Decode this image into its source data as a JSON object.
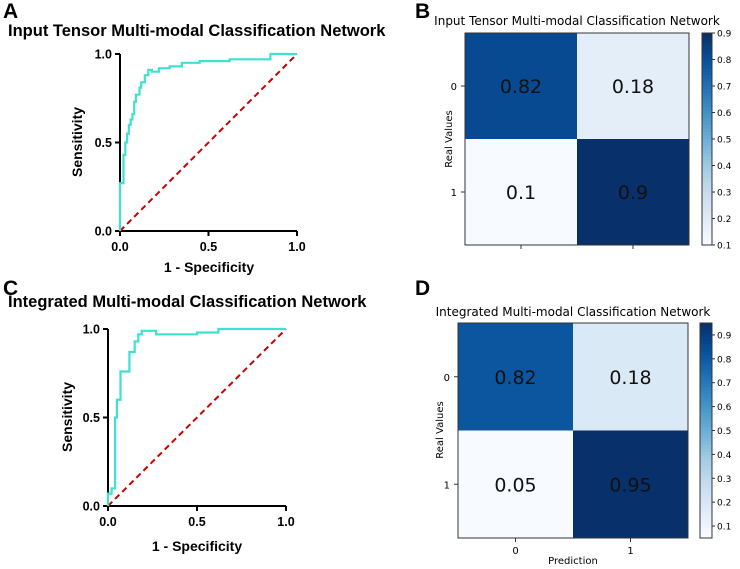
{
  "colors": {
    "roc_curve": "#40E0D0",
    "chance_line": "#CC0000",
    "cmap": [
      "#f7fbff",
      "#deebf7",
      "#c6dbef",
      "#9ecae1",
      "#6baed6",
      "#4292c6",
      "#2171b5",
      "#08519c",
      "#08306b"
    ]
  },
  "chart_data": [
    {
      "id": "A",
      "panel_label": "A",
      "type": "line",
      "title": "Input Tensor Multi-modal Classification Network",
      "xlabel": "1 - Specificity",
      "ylabel": "Sensitivity",
      "xlim": [
        0.0,
        1.0
      ],
      "ylim": [
        0.0,
        1.0
      ],
      "xticks": [
        "0.0",
        "0.5",
        "1.0"
      ],
      "yticks": [
        "0.0",
        "0.5",
        "1.0"
      ],
      "series": [
        {
          "name": "ROC",
          "x": [
            0,
            0,
            0.02,
            0.02,
            0.03,
            0.03,
            0.04,
            0.04,
            0.05,
            0.05,
            0.06,
            0.06,
            0.07,
            0.07,
            0.08,
            0.08,
            0.09,
            0.09,
            0.11,
            0.11,
            0.12,
            0.12,
            0.14,
            0.14,
            0.16,
            0.16,
            0.18,
            0.18,
            0.22,
            0.22,
            0.28,
            0.28,
            0.35,
            0.35,
            0.45,
            0.45,
            0.62,
            0.62,
            0.85,
            0.85,
            1.0
          ],
          "y": [
            0,
            0.27,
            0.27,
            0.43,
            0.43,
            0.5,
            0.5,
            0.55,
            0.55,
            0.6,
            0.6,
            0.63,
            0.63,
            0.66,
            0.66,
            0.73,
            0.73,
            0.77,
            0.77,
            0.81,
            0.81,
            0.84,
            0.84,
            0.88,
            0.88,
            0.91,
            0.91,
            0.9,
            0.9,
            0.92,
            0.92,
            0.93,
            0.93,
            0.95,
            0.95,
            0.96,
            0.96,
            0.97,
            0.97,
            1.0,
            1.0
          ]
        },
        {
          "name": "Chance",
          "style": "dashed",
          "x": [
            0,
            1
          ],
          "y": [
            0,
            1
          ]
        }
      ]
    },
    {
      "id": "B",
      "panel_label": "B",
      "type": "heatmap",
      "title": "Input Tensor Multi-modal Classification Network",
      "ylabel": "Real Values",
      "xlabel": "",
      "row_labels": [
        "0",
        "1"
      ],
      "col_labels": [],
      "values": [
        [
          0.82,
          0.18
        ],
        [
          0.1,
          0.9
        ]
      ],
      "value_labels": [
        [
          "0.82",
          "0.18"
        ],
        [
          "0.1",
          "0.9"
        ]
      ],
      "vmin": 0.1,
      "vmax": 0.9,
      "colorbar_ticks": [
        0.1,
        0.2,
        0.3,
        0.4,
        0.5,
        0.6,
        0.7,
        0.8,
        0.9
      ],
      "colorbar_tick_labels": [
        "0.1",
        "0.2",
        "0.3",
        "0.4",
        "0.5",
        "0.6",
        "0.7",
        "0.8",
        "0.9"
      ]
    },
    {
      "id": "C",
      "panel_label": "C",
      "type": "line",
      "title": "Integrated Multi-modal Classification Network",
      "xlabel": "1 - Specificity",
      "ylabel": "Sensitivity",
      "xlim": [
        0.0,
        1.0
      ],
      "ylim": [
        0.0,
        1.0
      ],
      "xticks": [
        "0.0",
        "0.5",
        "1.0"
      ],
      "yticks": [
        "0.0",
        "0.5",
        "1.0"
      ],
      "series": [
        {
          "name": "ROC",
          "x": [
            0,
            0,
            0.02,
            0.02,
            0.04,
            0.04,
            0.05,
            0.05,
            0.07,
            0.07,
            0.12,
            0.12,
            0.15,
            0.15,
            0.17,
            0.17,
            0.19,
            0.19,
            0.27,
            0.27,
            0.5,
            0.5,
            0.62,
            0.62,
            1.0
          ],
          "y": [
            0,
            0.07,
            0.07,
            0.1,
            0.1,
            0.5,
            0.5,
            0.6,
            0.6,
            0.76,
            0.76,
            0.87,
            0.87,
            0.93,
            0.93,
            0.97,
            0.97,
            0.99,
            0.99,
            0.97,
            0.97,
            0.98,
            0.98,
            1.0,
            1.0
          ]
        },
        {
          "name": "Chance",
          "style": "dashed",
          "x": [
            0,
            1
          ],
          "y": [
            0,
            1
          ]
        }
      ]
    },
    {
      "id": "D",
      "panel_label": "D",
      "type": "heatmap",
      "title": "Integrated Multi-modal Classification Network",
      "ylabel": "Real Values",
      "xlabel": "Prediction",
      "row_labels": [
        "0",
        "1"
      ],
      "col_labels": [
        "0",
        "1"
      ],
      "values": [
        [
          0.82,
          0.18
        ],
        [
          0.05,
          0.95
        ]
      ],
      "value_labels": [
        [
          "0.82",
          "0.18"
        ],
        [
          "0.05",
          "0.95"
        ]
      ],
      "vmin": 0.05,
      "vmax": 0.95,
      "colorbar_ticks": [
        0.1,
        0.2,
        0.3,
        0.4,
        0.5,
        0.6,
        0.7,
        0.8,
        0.9
      ],
      "colorbar_tick_labels": [
        "0.1",
        "0.2",
        "0.3",
        "0.4",
        "0.5",
        "0.6",
        "0.7",
        "0.8",
        "0.9"
      ]
    }
  ]
}
